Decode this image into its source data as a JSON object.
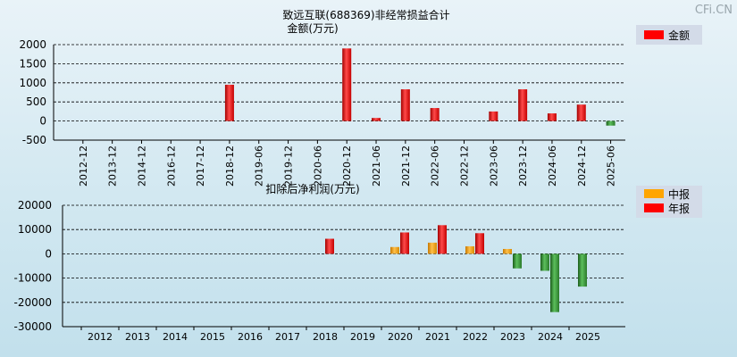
{
  "watermark": "CFi.CN",
  "colors": {
    "annual": "#ff0000",
    "interim": "#ffa500",
    "negative": "#2e8b2e",
    "background": "#d6ebf3"
  },
  "chart_data": [
    {
      "type": "bar",
      "title": "致远互联(688369)非经常损益合计",
      "subtitle": "金额(万元)",
      "legend": [
        "金额"
      ],
      "legend_position": "top-right",
      "categories": [
        "2012-12",
        "2013-12",
        "2014-12",
        "2016-12",
        "2017-12",
        "2018-12",
        "2019-06",
        "2019-12",
        "2020-06",
        "2020-12",
        "2021-06",
        "2021-12",
        "2022-06",
        "2022-12",
        "2023-06",
        "2023-12",
        "2024-06",
        "2024-12",
        "2025-06"
      ],
      "values": [
        null,
        null,
        null,
        null,
        null,
        950,
        null,
        null,
        null,
        1900,
        80,
        830,
        340,
        null,
        250,
        830,
        200,
        430,
        -120
      ],
      "ylim": [
        -500,
        2000
      ],
      "yticks": [
        -500,
        0,
        500,
        1000,
        1500,
        2000
      ],
      "grid": true
    },
    {
      "type": "bar",
      "title": "扣除后净利润(万元)",
      "legend": [
        "中报",
        "年报"
      ],
      "legend_position": "top-right",
      "categories": [
        "2012",
        "2013",
        "2014",
        "2015",
        "2016",
        "2017",
        "2018",
        "2019",
        "2020",
        "2021",
        "2022",
        "2023",
        "2024",
        "2025"
      ],
      "series": [
        {
          "name": "中报",
          "values": [
            null,
            null,
            null,
            null,
            null,
            null,
            null,
            null,
            2800,
            4600,
            3100,
            2000,
            -7000,
            -13500
          ]
        },
        {
          "name": "年报",
          "values": [
            null,
            null,
            null,
            null,
            null,
            null,
            6200,
            null,
            8800,
            11800,
            8500,
            -6000,
            -24000,
            null
          ]
        }
      ],
      "ylim": [
        -30000,
        20000
      ],
      "yticks": [
        -30000,
        -20000,
        -10000,
        0,
        10000,
        20000
      ],
      "grid": true
    }
  ]
}
